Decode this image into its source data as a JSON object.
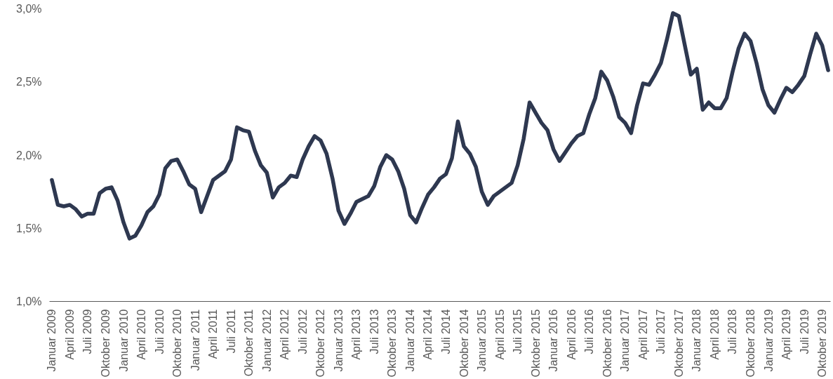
{
  "chart_data": {
    "type": "line",
    "categories": [
      "Januar 2009",
      null,
      null,
      "April 2009",
      null,
      null,
      "Juli 2009",
      null,
      null,
      "Oktober 2009",
      null,
      null,
      "Januar 2010",
      null,
      null,
      "April 2010",
      null,
      null,
      "Juli 2010",
      null,
      null,
      "Oktober 2010",
      null,
      null,
      "Januar 2011",
      null,
      null,
      "April 2011",
      null,
      null,
      "Juli 2011",
      null,
      null,
      "Oktober 2011",
      null,
      null,
      "Januar 2012",
      null,
      null,
      "April 2012",
      null,
      null,
      "Juli 2012",
      null,
      null,
      "Oktober 2012",
      null,
      null,
      "Januar 2013",
      null,
      null,
      "April 2013",
      null,
      null,
      "Juli 2013",
      null,
      null,
      "Oktober 2013",
      null,
      null,
      "Januar 2014",
      null,
      null,
      "April 2014",
      null,
      null,
      "Juli 2014",
      null,
      null,
      "Oktober 2014",
      null,
      null,
      "Januar 2015",
      null,
      null,
      "April 2015",
      null,
      null,
      "Juli 2015",
      null,
      null,
      "Oktober 2015",
      null,
      null,
      "Januar 2016",
      null,
      null,
      "April 2016",
      null,
      null,
      "Juli 2016",
      null,
      null,
      "Oktober 2016",
      null,
      null,
      "Januar 2017",
      null,
      null,
      "April 2017",
      null,
      null,
      "Juli 2017",
      null,
      null,
      "Oktober 2017",
      null,
      null,
      "Januar 2018",
      null,
      null,
      "April 2018",
      null,
      null,
      "Juli 2018",
      null,
      null,
      "Oktober 2018",
      null,
      null,
      "Januar 2019",
      null,
      null,
      "April 2019",
      null,
      null,
      "Juli 2019",
      null,
      null,
      "Oktober 2019",
      null
    ],
    "series": [
      {
        "color": "#2e3850",
        "values": [
          1.83,
          1.66,
          1.65,
          1.66,
          1.63,
          1.58,
          1.6,
          1.6,
          1.74,
          1.77,
          1.78,
          1.69,
          1.54,
          1.43,
          1.45,
          1.52,
          1.61,
          1.65,
          1.73,
          1.91,
          1.96,
          1.97,
          1.89,
          1.8,
          1.77,
          1.61,
          1.72,
          1.83,
          1.86,
          1.89,
          1.97,
          2.19,
          2.17,
          2.16,
          2.03,
          1.93,
          1.88,
          1.71,
          1.78,
          1.81,
          1.86,
          1.85,
          1.97,
          2.06,
          2.13,
          2.1,
          2.01,
          1.84,
          1.62,
          1.53,
          1.6,
          1.68,
          1.7,
          1.72,
          1.79,
          1.92,
          2.0,
          1.97,
          1.89,
          1.77,
          1.59,
          1.54,
          1.64,
          1.73,
          1.78,
          1.84,
          1.87,
          1.98,
          2.23,
          2.06,
          2.01,
          1.92,
          1.75,
          1.66,
          1.72,
          1.75,
          1.78,
          1.81,
          1.93,
          2.11,
          2.36,
          2.29,
          2.22,
          2.17,
          2.04,
          1.96,
          2.02,
          2.08,
          2.13,
          2.15,
          2.28,
          2.39,
          2.57,
          2.51,
          2.4,
          2.26,
          2.22,
          2.15,
          2.34,
          2.49,
          2.48,
          2.55,
          2.63,
          2.79,
          2.97,
          2.95,
          2.75,
          2.55,
          2.59,
          2.31,
          2.36,
          2.32,
          2.32,
          2.39,
          2.57,
          2.73,
          2.83,
          2.78,
          2.63,
          2.45,
          2.34,
          2.29,
          2.38,
          2.46,
          2.43,
          2.48,
          2.54,
          2.69,
          2.83,
          2.75,
          2.58
        ]
      }
    ],
    "ylim": [
      1.0,
      3.0
    ],
    "yticks": [
      {
        "value": 1.0,
        "label": "1,0%"
      },
      {
        "value": 1.5,
        "label": "1,5%"
      },
      {
        "value": 2.0,
        "label": "2,0%"
      },
      {
        "value": 2.5,
        "label": "2,5%"
      },
      {
        "value": 3.0,
        "label": "3,0%"
      }
    ],
    "grid": false,
    "marker": "none",
    "line_style": "solid"
  }
}
